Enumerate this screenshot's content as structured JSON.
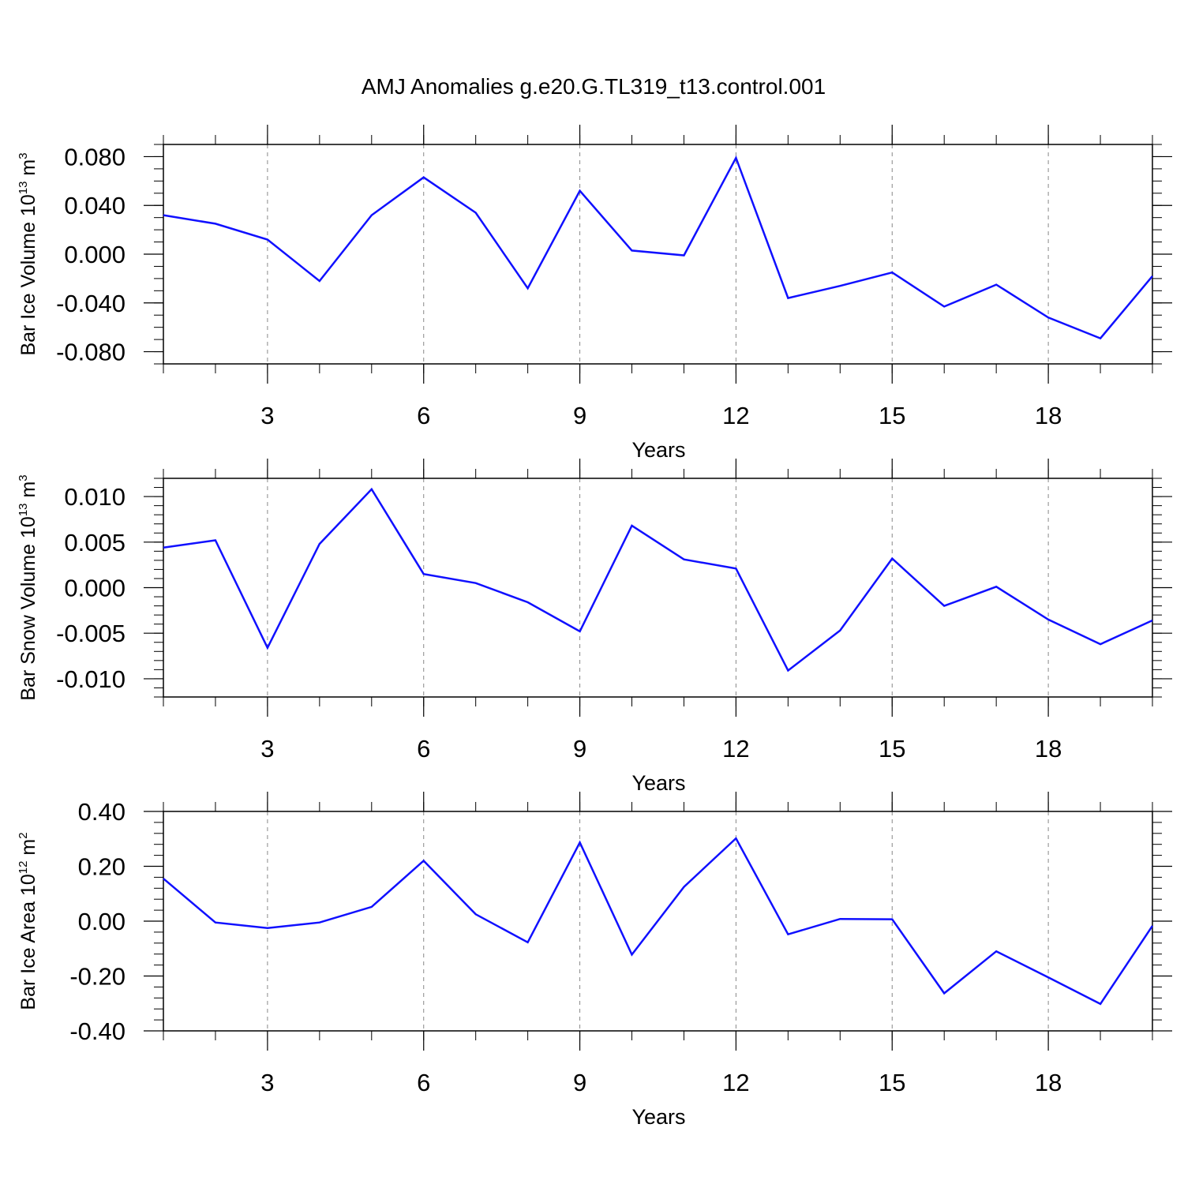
{
  "title": "AMJ Anomalies g.e20.G.TL319_t13.control.001",
  "line_color": "#1010ff",
  "grid_color": "#888888",
  "chart_data": [
    {
      "type": "line",
      "ylabel": {
        "text": "Bar Ice Volume 10",
        "sup": "13",
        "unit": " m",
        "unit_sup": "3"
      },
      "xlabel": "Years",
      "xlim": [
        1,
        20
      ],
      "ylim": [
        -0.09,
        0.09
      ],
      "yticks": [
        -0.08,
        -0.04,
        0.0,
        0.04,
        0.08
      ],
      "ytick_labels": [
        "-0.080",
        "-0.040",
        "0.000",
        "0.040",
        "0.080"
      ],
      "ytick_minor": 0.01,
      "xticks": [
        3,
        6,
        9,
        12,
        15,
        18
      ],
      "xtick_labels": [
        "3",
        "6",
        "9",
        "12",
        "15",
        "18"
      ],
      "grid_x": [
        3,
        6,
        9,
        12,
        15,
        18
      ],
      "series": [
        {
          "x": [
            1,
            2,
            3,
            4,
            5,
            6,
            7,
            8,
            9,
            10,
            11,
            12,
            13,
            14,
            15,
            16,
            17,
            18,
            19,
            20
          ],
          "values": [
            0.032,
            0.025,
            0.012,
            -0.022,
            0.032,
            0.063,
            0.034,
            -0.028,
            0.052,
            0.003,
            -0.001,
            0.079,
            -0.036,
            -0.026,
            -0.015,
            -0.043,
            -0.025,
            -0.052,
            -0.069,
            -0.018
          ]
        }
      ]
    },
    {
      "type": "line",
      "ylabel": {
        "text": "Bar Snow Volume 10",
        "sup": "13",
        "unit": " m",
        "unit_sup": "3"
      },
      "xlabel": "Years",
      "xlim": [
        1,
        20
      ],
      "ylim": [
        -0.012,
        0.012
      ],
      "yticks": [
        -0.01,
        -0.005,
        0.0,
        0.005,
        0.01
      ],
      "ytick_labels": [
        "-0.010",
        "-0.005",
        "0.000",
        "0.005",
        "0.010"
      ],
      "ytick_minor": 0.001,
      "xticks": [
        3,
        6,
        9,
        12,
        15,
        18
      ],
      "xtick_labels": [
        "3",
        "6",
        "9",
        "12",
        "15",
        "18"
      ],
      "grid_x": [
        3,
        6,
        9,
        12,
        15,
        18
      ],
      "series": [
        {
          "x": [
            1,
            2,
            3,
            4,
            5,
            6,
            7,
            8,
            9,
            10,
            11,
            12,
            13,
            14,
            15,
            16,
            17,
            18,
            19,
            20
          ],
          "values": [
            0.0044,
            0.0052,
            -0.0066,
            0.0048,
            0.0108,
            0.0015,
            0.0005,
            -0.0016,
            -0.0048,
            0.0068,
            0.0031,
            0.0021,
            -0.0091,
            -0.0047,
            0.0032,
            -0.002,
            0.0001,
            -0.0035,
            -0.0062,
            -0.0036
          ]
        }
      ]
    },
    {
      "type": "line",
      "ylabel": {
        "text": "Bar Ice Area 10",
        "sup": "12",
        "unit": " m",
        "unit_sup": "2"
      },
      "xlabel": "Years",
      "xlim": [
        1,
        20
      ],
      "ylim": [
        -0.4,
        0.4
      ],
      "yticks": [
        -0.4,
        -0.2,
        0.0,
        0.2,
        0.4
      ],
      "ytick_labels": [
        "-0.40",
        "-0.20",
        "0.00",
        "0.20",
        "0.40"
      ],
      "ytick_minor": 0.04,
      "xticks": [
        3,
        6,
        9,
        12,
        15,
        18
      ],
      "xtick_labels": [
        "3",
        "6",
        "9",
        "12",
        "15",
        "18"
      ],
      "grid_x": [
        3,
        6,
        9,
        12,
        15,
        18
      ],
      "series": [
        {
          "x": [
            1,
            2,
            3,
            4,
            5,
            6,
            7,
            8,
            9,
            10,
            11,
            12,
            13,
            14,
            15,
            16,
            17,
            18,
            19,
            20
          ],
          "values": [
            0.155,
            -0.005,
            -0.025,
            -0.005,
            0.052,
            0.22,
            0.025,
            -0.077,
            0.287,
            -0.122,
            0.125,
            0.302,
            -0.048,
            0.008,
            0.007,
            -0.263,
            -0.11,
            -0.205,
            -0.302,
            -0.017
          ]
        }
      ]
    }
  ]
}
